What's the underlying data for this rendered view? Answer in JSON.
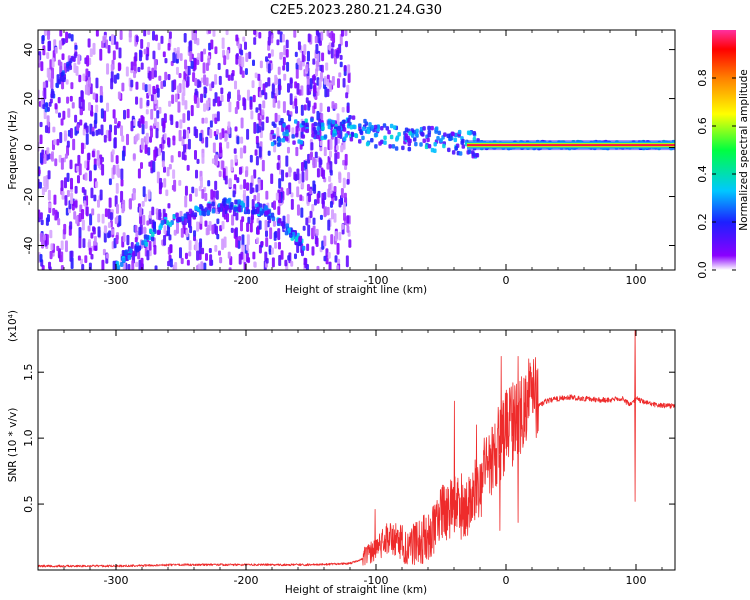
{
  "title": "C2E5.2023.280.21.24.G30",
  "colors": {
    "trace": "#ee2b2b",
    "spec_low": "#6a00ff",
    "spec_mid": "#00e0d0",
    "spec_high": "#ff2020"
  },
  "chart_data": [
    {
      "type": "heatmap",
      "xlabel": "Height of straight line (km)",
      "ylabel": "Frequency (Hz)",
      "xlim": [
        -360,
        130
      ],
      "ylim": [
        -50,
        48
      ],
      "xticks": [
        "-300",
        "-200",
        "-100",
        "0",
        "100"
      ],
      "yticks": [
        "-40",
        "-20",
        "0",
        "20",
        "40"
      ],
      "colorbar": {
        "label": "Normalized spectral amplitude",
        "range": [
          0,
          1
        ],
        "ticks": [
          "0.0",
          "0.2",
          "0.4",
          "0.6",
          "0.8"
        ],
        "colormap": "rainbow"
      },
      "features": [
        {
          "name": "diffuse noise",
          "x": [
            -360,
            -120
          ],
          "y": [
            -50,
            48
          ],
          "amplitude": 0.15
        },
        {
          "name": "rising streak",
          "points": [
            [
              -355,
              15
            ],
            [
              -330,
              40
            ]
          ],
          "amplitude": 0.3
        },
        {
          "name": "arc",
          "points": [
            [
              -300,
              -48
            ],
            [
              -260,
              -30
            ],
            [
              -215,
              -23
            ],
            [
              -185,
              -26
            ],
            [
              -155,
              -40
            ]
          ],
          "amplitude": 0.35
        },
        {
          "name": "band",
          "points": [
            [
              -180,
              6
            ],
            [
              -120,
              8
            ],
            [
              -90,
              4
            ],
            [
              -60,
              4
            ],
            [
              -35,
              2
            ],
            [
              -20,
              1
            ],
            [
              0,
              1
            ],
            [
              130,
              1
            ]
          ],
          "amplitude": 0.45
        },
        {
          "name": "strong carrier",
          "x": [
            -30,
            130
          ],
          "y": 1,
          "amplitude": 0.95
        }
      ]
    },
    {
      "type": "line",
      "xlabel": "Height of straight line (km)",
      "ylabel": "SNR (10 * v/v)",
      "multiplier": "(x10⁴)",
      "xlim": [
        -360,
        130
      ],
      "ylim": [
        0,
        1.82
      ],
      "xticks": [
        "-300",
        "-200",
        "-100",
        "0",
        "100"
      ],
      "yticks": [
        "0.5",
        "1.0",
        "1.5"
      ],
      "series": [
        {
          "x": [
            -360,
            -300,
            -250,
            -200,
            -150,
            -120,
            -100,
            -90,
            -80,
            -70,
            -60,
            -50,
            -40,
            -30,
            -20,
            -10,
            0,
            10,
            20,
            30,
            40,
            50,
            60,
            70,
            80,
            90,
            95,
            100,
            105,
            110,
            120,
            130
          ],
          "y": [
            0.03,
            0.03,
            0.04,
            0.04,
            0.04,
            0.05,
            0.12,
            0.22,
            0.15,
            0.14,
            0.2,
            0.35,
            0.42,
            0.4,
            0.55,
            0.8,
            0.95,
            1.08,
            1.2,
            1.28,
            1.3,
            1.31,
            1.3,
            1.29,
            1.29,
            1.3,
            1.25,
            1.3,
            1.28,
            1.26,
            1.25,
            1.24
          ],
          "peaks": [
            [
              -101,
              0.46
            ],
            [
              -40,
              1.28
            ],
            [
              -23,
              1.1
            ],
            [
              -4,
              1.62
            ],
            [
              5,
              1.42
            ],
            [
              9,
              1.62
            ],
            [
              99,
              1.85
            ]
          ],
          "dips": [
            [
              99,
              0.52
            ],
            [
              9,
              0.36
            ],
            [
              -5,
              0.3
            ]
          ]
        }
      ]
    }
  ]
}
